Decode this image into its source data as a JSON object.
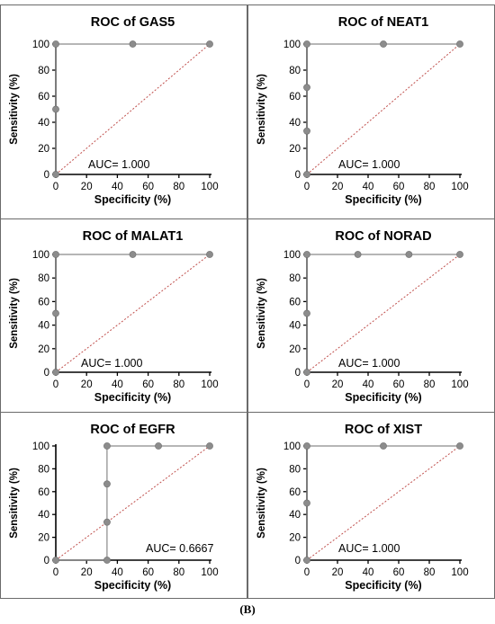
{
  "panel_label": "(B)",
  "colors": {
    "roc_curve": "#8a8a8a",
    "roc_point": "#8c8c8c",
    "reference_line": "#c0504d",
    "frame": "#6b6b6b"
  },
  "chart_data": [
    {
      "type": "line",
      "title": "ROC of GAS5",
      "xlabel": "Specificity (%)",
      "ylabel": "Sensitivity (%)",
      "xlim": [
        0,
        100
      ],
      "ylim": [
        0,
        100
      ],
      "xticks": [
        0,
        20,
        40,
        60,
        80,
        100
      ],
      "yticks": [
        0,
        20,
        40,
        60,
        80,
        100
      ],
      "auc_label": "AUC= 1.000",
      "points": [
        [
          0,
          0
        ],
        [
          0,
          50
        ],
        [
          0,
          100
        ],
        [
          50,
          100
        ],
        [
          100,
          100
        ]
      ],
      "reference_line": [
        [
          0,
          0
        ],
        [
          100,
          100
        ]
      ]
    },
    {
      "type": "line",
      "title": "ROC of NEAT1",
      "xlabel": "Specificity (%)",
      "ylabel": "Sensitivity (%)",
      "xlim": [
        0,
        100
      ],
      "ylim": [
        0,
        100
      ],
      "xticks": [
        0,
        20,
        40,
        60,
        80,
        100
      ],
      "yticks": [
        0,
        20,
        40,
        60,
        80,
        100
      ],
      "auc_label": "AUC= 1.000",
      "points": [
        [
          0,
          0
        ],
        [
          0,
          33.3
        ],
        [
          0,
          66.7
        ],
        [
          0,
          100
        ],
        [
          50,
          100
        ],
        [
          100,
          100
        ]
      ],
      "reference_line": [
        [
          0,
          0
        ],
        [
          100,
          100
        ]
      ]
    },
    {
      "type": "line",
      "title": "ROC of MALAT1",
      "xlabel": "Specificity (%)",
      "ylabel": "Sensitivity (%)",
      "xlim": [
        0,
        100
      ],
      "ylim": [
        0,
        100
      ],
      "xticks": [
        0,
        20,
        40,
        60,
        80,
        100
      ],
      "yticks": [
        0,
        20,
        40,
        60,
        80,
        100
      ],
      "auc_label": "AUC= 1.000",
      "points": [
        [
          0,
          0
        ],
        [
          0,
          50
        ],
        [
          0,
          100
        ],
        [
          50,
          100
        ],
        [
          100,
          100
        ]
      ],
      "reference_line": [
        [
          0,
          0
        ],
        [
          100,
          100
        ]
      ]
    },
    {
      "type": "line",
      "title": "ROC of NORAD",
      "xlabel": "Specificity (%)",
      "ylabel": "Sensitivity (%)",
      "xlim": [
        0,
        100
      ],
      "ylim": [
        0,
        100
      ],
      "xticks": [
        0,
        20,
        40,
        60,
        80,
        100
      ],
      "yticks": [
        0,
        20,
        40,
        60,
        80,
        100
      ],
      "auc_label": "AUC= 1.000",
      "points": [
        [
          0,
          0
        ],
        [
          0,
          50
        ],
        [
          0,
          100
        ],
        [
          33.3,
          100
        ],
        [
          66.7,
          100
        ],
        [
          100,
          100
        ]
      ],
      "reference_line": [
        [
          0,
          0
        ],
        [
          100,
          100
        ]
      ]
    },
    {
      "type": "line",
      "title": "ROC of EGFR",
      "xlabel": "Specificity (%)",
      "ylabel": "Sensitivity (%)",
      "xlim": [
        0,
        100
      ],
      "ylim": [
        0,
        100
      ],
      "xticks": [
        0,
        20,
        40,
        60,
        80,
        100
      ],
      "yticks": [
        0,
        20,
        40,
        60,
        80,
        100
      ],
      "auc_label": "AUC= 0.6667",
      "points": [
        [
          0,
          0
        ],
        [
          33.3,
          0
        ],
        [
          33.3,
          33.3
        ],
        [
          33.3,
          66.7
        ],
        [
          33.3,
          100
        ],
        [
          66.7,
          100
        ],
        [
          100,
          100
        ]
      ],
      "reference_line": [
        [
          0,
          0
        ],
        [
          100,
          100
        ]
      ]
    },
    {
      "type": "line",
      "title": "ROC of XIST",
      "xlabel": "Specificity (%)",
      "ylabel": "Sensitivity (%)",
      "xlim": [
        0,
        100
      ],
      "ylim": [
        0,
        100
      ],
      "xticks": [
        0,
        20,
        40,
        60,
        80,
        100
      ],
      "yticks": [
        0,
        20,
        40,
        60,
        80,
        100
      ],
      "auc_label": "AUC= 1.000",
      "points": [
        [
          0,
          0
        ],
        [
          0,
          50
        ],
        [
          0,
          100
        ],
        [
          50,
          100
        ],
        [
          100,
          100
        ]
      ],
      "reference_line": [
        [
          0,
          0
        ],
        [
          100,
          100
        ]
      ]
    }
  ]
}
